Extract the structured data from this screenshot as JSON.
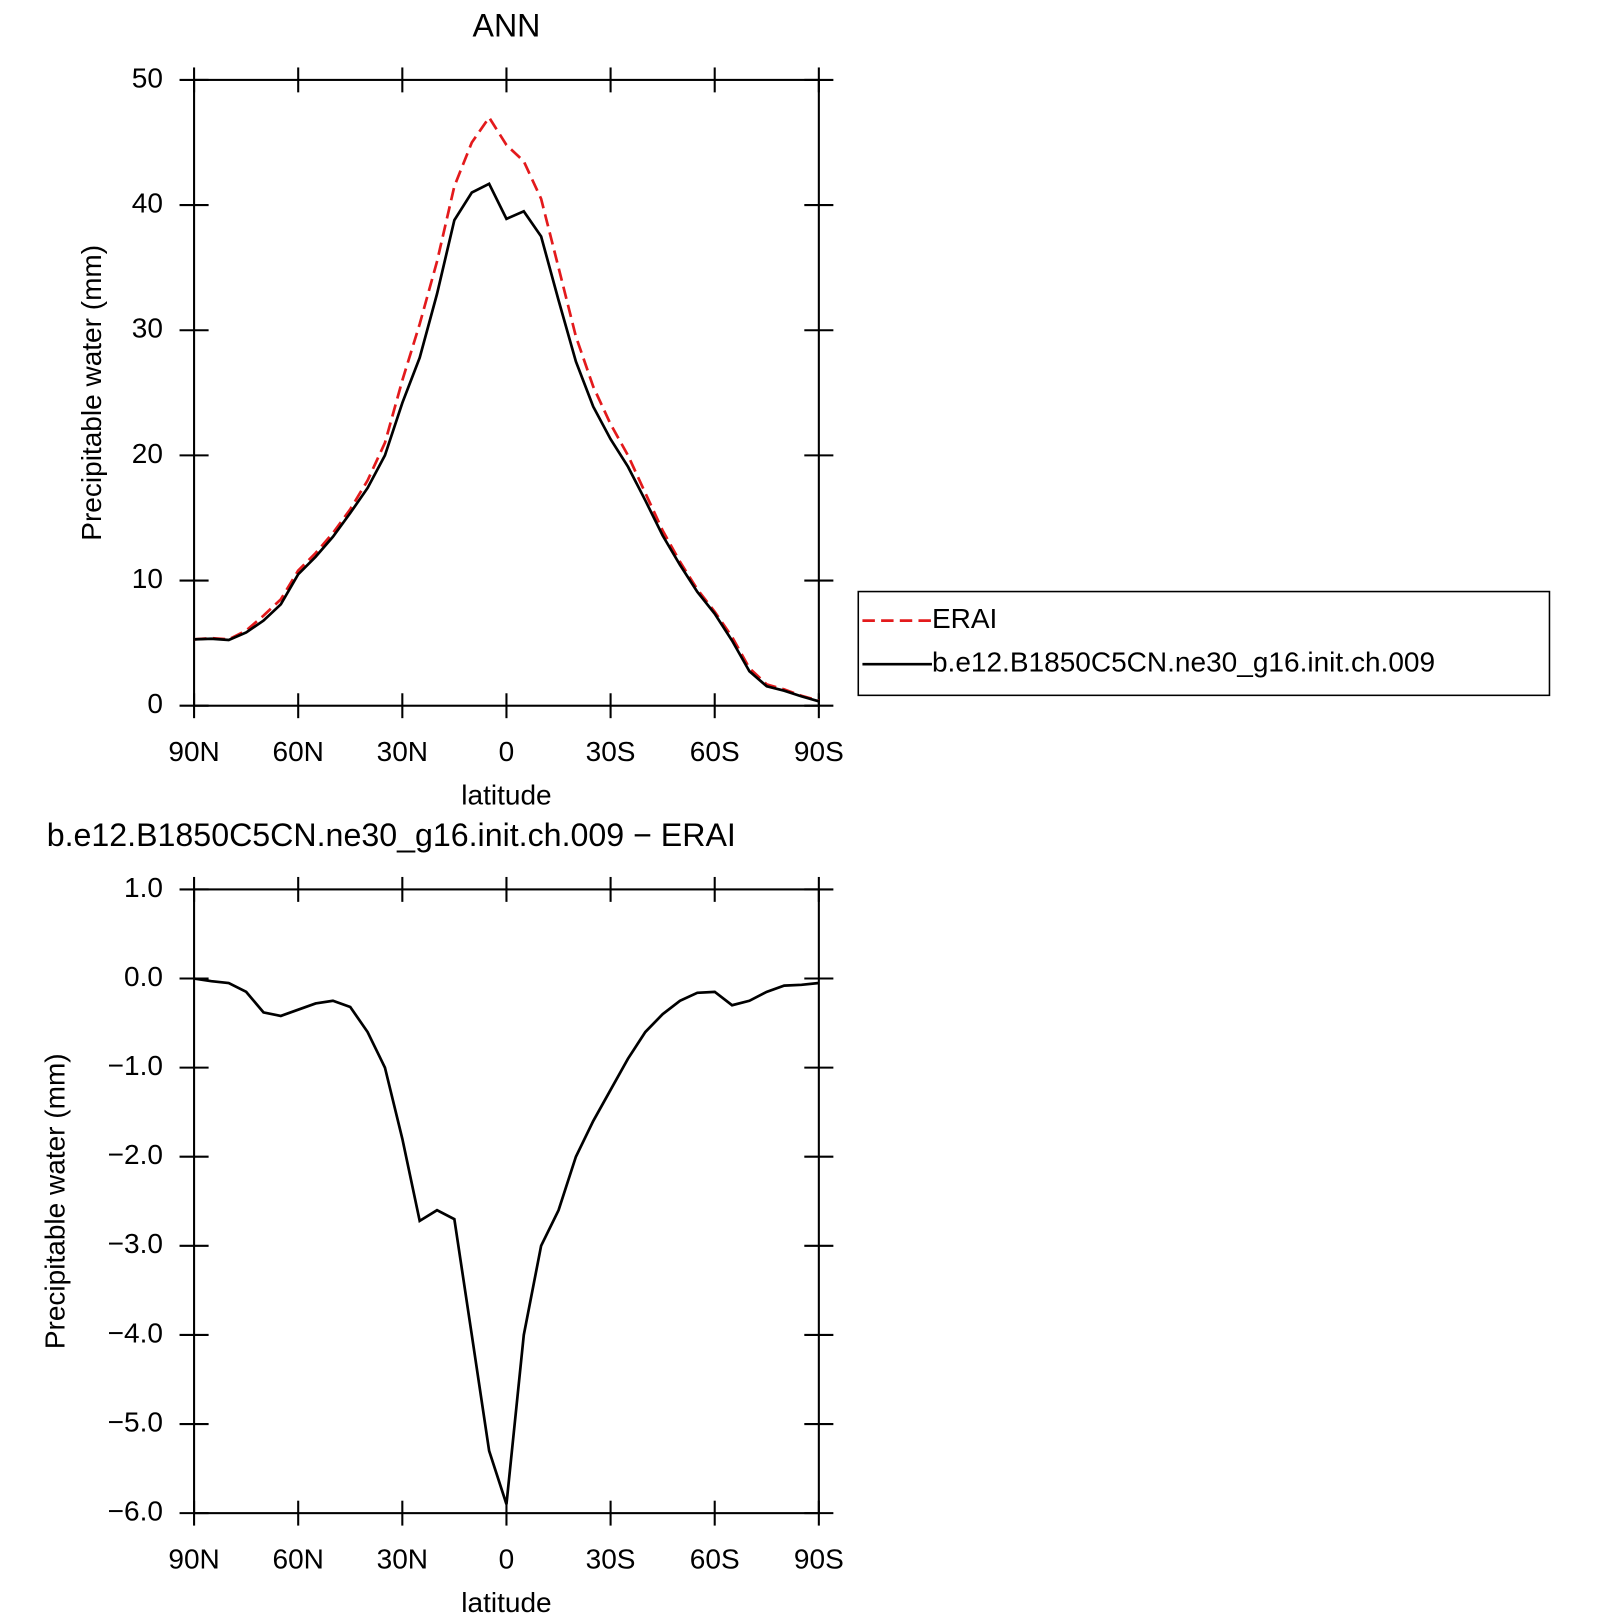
{
  "chart_data": [
    {
      "type": "line",
      "title": "ANN",
      "xlabel": "latitude",
      "ylabel": "Precipitable water (mm)",
      "x": [
        90,
        85,
        80,
        75,
        70,
        65,
        60,
        55,
        50,
        45,
        40,
        35,
        30,
        25,
        20,
        15,
        10,
        5,
        0,
        -5,
        -10,
        -15,
        -20,
        -25,
        -30,
        -35,
        -40,
        -45,
        -50,
        -55,
        -60,
        -65,
        -70,
        -75,
        -80,
        -85,
        -90
      ],
      "xlim": [
        90,
        -90
      ],
      "xticks": [
        {
          "value": 90,
          "label": "90N"
        },
        {
          "value": 60,
          "label": "60N"
        },
        {
          "value": 30,
          "label": "30N"
        },
        0,
        {
          "value": -30,
          "label": "30S"
        },
        {
          "value": -60,
          "label": "60S"
        },
        {
          "value": -90,
          "label": "90S"
        }
      ],
      "ylim": [
        0,
        50
      ],
      "yticks": [
        0,
        10,
        20,
        30,
        40,
        50
      ],
      "legend": "right",
      "series": [
        {
          "name": "ERAI",
          "color": "#e31a1c",
          "dash": true,
          "values": [
            5.3,
            5.4,
            5.3,
            6.0,
            7.2,
            8.5,
            10.8,
            12.2,
            13.8,
            15.7,
            18.0,
            21.0,
            26.0,
            30.5,
            35.5,
            41.5,
            45.0,
            47.0,
            44.8,
            43.5,
            40.5,
            35.0,
            29.5,
            25.5,
            22.5,
            20.0,
            17.0,
            14.0,
            11.5,
            9.3,
            7.5,
            5.5,
            3.0,
            1.7,
            1.3,
            0.8,
            0.4
          ]
        },
        {
          "name": "b.e12.B1850C5CN.ne30_g16.init.ch.009",
          "color": "#000000",
          "dash": false,
          "values": [
            5.3,
            5.35,
            5.25,
            5.85,
            6.8,
            8.1,
            10.5,
            11.9,
            13.5,
            15.4,
            17.4,
            20.0,
            24.2,
            27.8,
            32.9,
            38.8,
            41.0,
            41.7,
            38.9,
            39.5,
            37.5,
            32.4,
            27.5,
            23.9,
            21.3,
            19.1,
            16.4,
            13.6,
            11.25,
            9.1,
            7.35,
            5.2,
            2.75,
            1.55,
            1.2,
            0.75,
            0.35
          ]
        }
      ]
    },
    {
      "type": "line",
      "title": "b.e12.B1850C5CN.ne30_g16.init.ch.009 − ERAI",
      "xlabel": "latitude",
      "ylabel": "Precipitable water (mm)",
      "x": [
        90,
        85,
        80,
        75,
        70,
        65,
        60,
        55,
        50,
        45,
        40,
        35,
        30,
        25,
        20,
        15,
        10,
        5,
        0,
        -5,
        -10,
        -15,
        -20,
        -25,
        -30,
        -35,
        -40,
        -45,
        -50,
        -55,
        -60,
        -65,
        -70,
        -75,
        -80,
        -85,
        -90
      ],
      "xlim": [
        90,
        -90
      ],
      "xticks": [
        {
          "value": 90,
          "label": "90N"
        },
        {
          "value": 60,
          "label": "60N"
        },
        {
          "value": 30,
          "label": "30N"
        },
        0,
        {
          "value": -30,
          "label": "30S"
        },
        {
          "value": -60,
          "label": "60S"
        },
        {
          "value": -90,
          "label": "90S"
        }
      ],
      "ylim": [
        -6,
        1
      ],
      "yticks": [
        {
          "value": 1,
          "label": "1.0"
        },
        {
          "value": 0,
          "label": "0.0"
        },
        {
          "value": -1,
          "label": "−1.0"
        },
        {
          "value": -2,
          "label": "−2.0"
        },
        {
          "value": -3,
          "label": "−3.0"
        },
        {
          "value": -4,
          "label": "−4.0"
        },
        {
          "value": -5,
          "label": "−5.0"
        },
        {
          "value": -6,
          "label": "−6.0"
        }
      ],
      "color": "#000000",
      "values": [
        0.0,
        -0.03,
        -0.05,
        -0.15,
        -0.38,
        -0.42,
        -0.35,
        -0.28,
        -0.25,
        -0.32,
        -0.6,
        -1.0,
        -1.8,
        -2.72,
        -2.6,
        -2.7,
        -4.0,
        -5.3,
        -5.9,
        -4.0,
        -3.0,
        -2.6,
        -2.0,
        -1.6,
        -1.25,
        -0.9,
        -0.6,
        -0.4,
        -0.25,
        -0.16,
        -0.15,
        -0.3,
        -0.25,
        -0.15,
        -0.08,
        -0.07,
        -0.05
      ]
    }
  ]
}
